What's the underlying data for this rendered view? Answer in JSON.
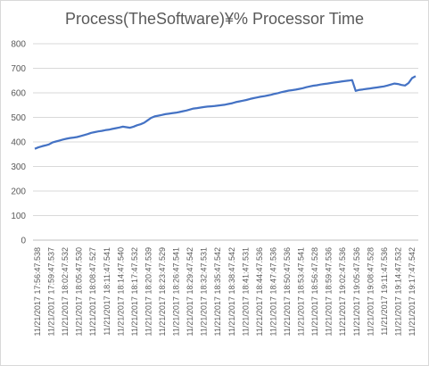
{
  "chart_data": {
    "type": "line",
    "title": "Process(TheSoftware)¥% Processor Time",
    "xlabel": "",
    "ylabel": "",
    "ylim": [
      0,
      800
    ],
    "y_ticks": [
      0,
      100,
      200,
      300,
      400,
      500,
      600,
      700,
      800
    ],
    "grid": "horizontal",
    "legend": "none",
    "line_color": "#4472c4",
    "x_tick_labels": [
      "11/21/2017 17:56:47.538",
      "11/21/2017 17:59:47.537",
      "11/21/2017 18:02:47.532",
      "11/21/2017 18:05:47.530",
      "11/21/2017 18:08:47.527",
      "11/21/2017 18:11:47.541",
      "11/21/2017 18:14:47.540",
      "11/21/2017 18:17:47.532",
      "11/21/2017 18:20:47.539",
      "11/21/2017 18:23:47.529",
      "11/21/2017 18:26:47.541",
      "11/21/2017 18:29:47.542",
      "11/21/2017 18:32:47.531",
      "11/21/2017 18:35:47.542",
      "11/21/2017 18:38:47.542",
      "11/21/2017 18:41:47.531",
      "11/21/2017 18:44:47.536",
      "11/21/2017 18:47:47.536",
      "11/21/2017 18:50:47.536",
      "11/21/2017 18:53:47.541",
      "11/21/2017 18:56:47.528",
      "11/21/2017 18:59:47.536",
      "11/21/2017 19:02:47.536",
      "11/21/2017 19:05:47.536",
      "11/21/2017 19:08:47.528",
      "11/21/2017 19:11:47.536",
      "11/21/2017 19:14:47.532",
      "11/21/2017 19:17:47.542"
    ],
    "series": [
      {
        "values": [
          372,
          378,
          382,
          386,
          390,
          398,
          402,
          406,
          410,
          413,
          416,
          418,
          420,
          424,
          428,
          432,
          437,
          440,
          443,
          445,
          448,
          450,
          453,
          456,
          459,
          462,
          460,
          458,
          462,
          468,
          472,
          478,
          488,
          498,
          504,
          507,
          510,
          513,
          515,
          517,
          519,
          522,
          525,
          528,
          532,
          536,
          538,
          540,
          542,
          544,
          545,
          546,
          548,
          550,
          552,
          555,
          558,
          562,
          565,
          568,
          571,
          575,
          578,
          581,
          584,
          586,
          589,
          592,
          596,
          599,
          603,
          606,
          609,
          611,
          613,
          616,
          619,
          623,
          626,
          629,
          631,
          634,
          636,
          638,
          640,
          642,
          644,
          646,
          648,
          650,
          652,
          608,
          612,
          614,
          616,
          618,
          620,
          622,
          624,
          626,
          630,
          634,
          638,
          636,
          632,
          630,
          640,
          660,
          668
        ]
      }
    ]
  }
}
